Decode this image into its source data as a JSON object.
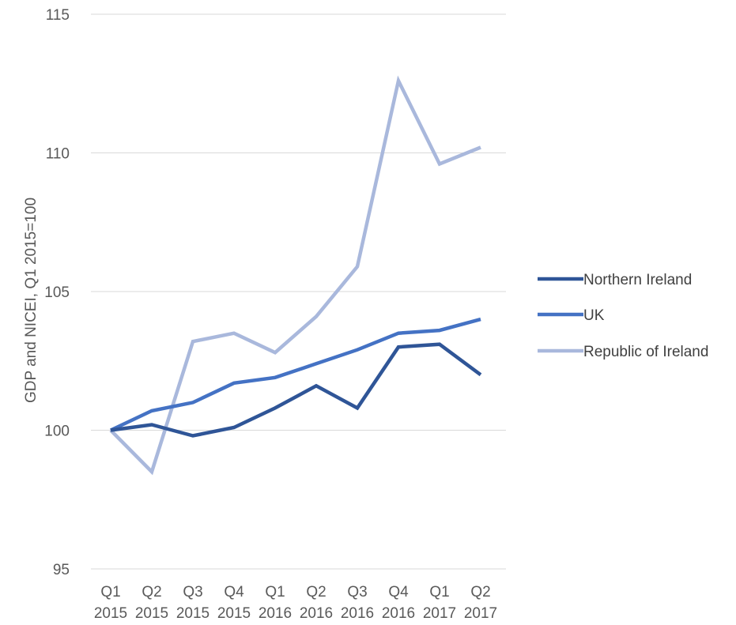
{
  "chart_data": {
    "type": "line",
    "title": "",
    "xlabel": "",
    "ylabel": "GDP and NICEI, Q1 2015=100",
    "ylim": [
      95,
      115
    ],
    "yticks": [
      "95",
      "100",
      "105",
      "110",
      "115"
    ],
    "categories": [
      [
        "Q1",
        "2015"
      ],
      [
        "Q2",
        "2015"
      ],
      [
        "Q3",
        "2015"
      ],
      [
        "Q4",
        "2015"
      ],
      [
        "Q1",
        "2016"
      ],
      [
        "Q2",
        "2016"
      ],
      [
        "Q3",
        "2016"
      ],
      [
        "Q4",
        "2016"
      ],
      [
        "Q1",
        "2017"
      ],
      [
        "Q2",
        "2017"
      ]
    ],
    "grid": true,
    "legend_position": "right",
    "series": [
      {
        "name": "Northern Ireland",
        "color": "#2f5597",
        "values": [
          100,
          100.2,
          99.8,
          100.1,
          100.8,
          101.6,
          100.8,
          103.0,
          103.1,
          102.0
        ]
      },
      {
        "name": "UK",
        "color": "#4472c4",
        "values": [
          100,
          100.7,
          101.0,
          101.7,
          101.9,
          102.4,
          102.9,
          103.5,
          103.6,
          104.0
        ]
      },
      {
        "name": "Republic of Ireland",
        "color": "#a9b8dc",
        "values": [
          100,
          98.5,
          103.2,
          103.5,
          102.8,
          104.1,
          105.9,
          112.6,
          109.6,
          110.2
        ]
      }
    ]
  }
}
